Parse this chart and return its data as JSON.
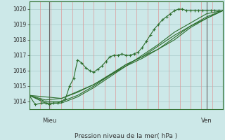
{
  "background_color": "#cce8e8",
  "plot_bg_color": "#cce8e8",
  "grid_color_v": "#dd9999",
  "grid_color_h": "#aacccc",
  "line_color": "#2d6e2d",
  "marker_color": "#2d6e2d",
  "bottom_label": "Pression niveau de la mer( hPa )",
  "xlabel_left": "Mieu",
  "xlabel_right": "Ven",
  "ylim": [
    1013.5,
    1020.5
  ],
  "xlim": [
    0,
    96
  ],
  "yticks": [
    1014,
    1015,
    1016,
    1017,
    1018,
    1019,
    1020
  ],
  "vline_left_x": 10,
  "vline_right_x": 88,
  "series": [
    [
      0,
      1014.4,
      3,
      1013.8,
      6,
      1013.9,
      8,
      1013.9,
      10,
      1013.8,
      12,
      1013.9,
      14,
      1013.9,
      16,
      1014.0,
      18,
      1014.2,
      20,
      1015.0,
      22,
      1015.5,
      24,
      1016.7,
      26,
      1016.5,
      28,
      1016.2,
      30,
      1016.0,
      32,
      1015.9,
      34,
      1016.1,
      36,
      1016.3,
      38,
      1016.6,
      40,
      1016.9,
      42,
      1017.0,
      44,
      1017.0,
      46,
      1017.1,
      48,
      1017.0,
      50,
      1017.0,
      52,
      1017.1,
      54,
      1017.2,
      56,
      1017.5,
      58,
      1017.9,
      60,
      1018.3,
      62,
      1018.7,
      64,
      1019.0,
      66,
      1019.3,
      68,
      1019.5,
      70,
      1019.7,
      72,
      1019.9,
      74,
      1020.0,
      76,
      1020.0,
      78,
      1019.9,
      80,
      1019.9,
      82,
      1019.9,
      84,
      1019.9,
      86,
      1019.9,
      88,
      1019.9,
      90,
      1019.9,
      92,
      1019.9,
      94,
      1019.9,
      96,
      1019.9
    ],
    [
      0,
      1014.4,
      8,
      1013.9,
      16,
      1013.9,
      24,
      1014.3,
      32,
      1014.9,
      40,
      1015.6,
      48,
      1016.3,
      56,
      1017.0,
      64,
      1017.7,
      72,
      1018.5,
      80,
      1019.1,
      88,
      1019.7,
      96,
      1019.9
    ],
    [
      0,
      1014.4,
      8,
      1014.0,
      16,
      1014.0,
      24,
      1014.4,
      32,
      1015.0,
      40,
      1015.7,
      48,
      1016.4,
      56,
      1016.9,
      64,
      1017.6,
      72,
      1018.3,
      80,
      1018.9,
      88,
      1019.5,
      96,
      1019.9
    ],
    [
      0,
      1014.4,
      8,
      1014.1,
      16,
      1014.2,
      24,
      1014.6,
      32,
      1015.1,
      40,
      1015.7,
      48,
      1016.3,
      56,
      1016.8,
      64,
      1017.4,
      72,
      1018.0,
      80,
      1018.8,
      88,
      1019.4,
      96,
      1019.9
    ],
    [
      0,
      1014.4,
      16,
      1014.2,
      32,
      1015.1,
      48,
      1016.4,
      64,
      1017.4,
      80,
      1018.9,
      96,
      1019.9
    ]
  ]
}
